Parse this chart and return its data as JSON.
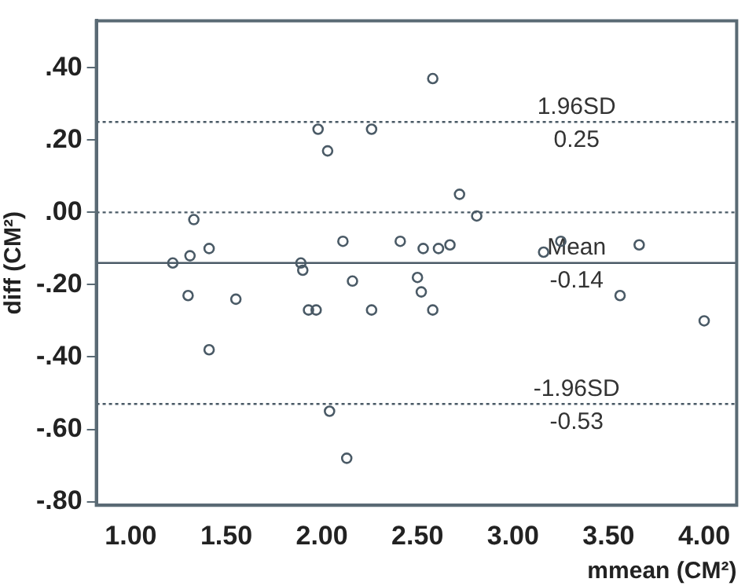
{
  "chart_data": {
    "type": "scatter",
    "xlabel": "mmean (CM²)",
    "ylabel": "diff (CM²)",
    "color": "#4a5a66",
    "marker": "circle",
    "grid": false,
    "legend": false,
    "x": [
      2.58,
      1.98,
      2.26,
      2.03,
      2.72,
      2.81,
      1.33,
      1.41,
      1.31,
      2.11,
      2.41,
      1.22,
      1.89,
      1.9,
      2.53,
      2.61,
      2.67,
      3.16,
      3.25,
      3.66,
      2.5,
      2.52,
      3.56,
      2.16,
      1.3,
      1.55,
      1.93,
      1.97,
      2.26,
      2.58,
      4.0,
      1.41,
      2.04,
      2.13
    ],
    "values": [
      0.37,
      0.23,
      0.23,
      0.17,
      0.05,
      -0.01,
      -0.02,
      -0.1,
      -0.12,
      -0.08,
      -0.08,
      -0.14,
      -0.14,
      -0.16,
      -0.1,
      -0.1,
      -0.09,
      -0.11,
      -0.08,
      -0.09,
      -0.18,
      -0.22,
      -0.23,
      -0.19,
      -0.23,
      -0.24,
      -0.27,
      -0.27,
      -0.27,
      -0.27,
      -0.3,
      -0.38,
      -0.55,
      -0.68
    ],
    "xlim": [
      0.82,
      4.17
    ],
    "xticks": [
      {
        "value": 1,
        "label": "1.00"
      },
      {
        "value": 1.5,
        "label": "1.50"
      },
      {
        "value": 2,
        "label": "2.00"
      },
      {
        "value": 2.5,
        "label": "2.50"
      },
      {
        "value": 3,
        "label": "3.00"
      },
      {
        "value": 3.5,
        "label": "3.50"
      },
      {
        "value": 4,
        "label": "4.00"
      }
    ],
    "ylim": [
      -0.81,
      0.53
    ],
    "yticks": [
      {
        "value": 0.4,
        "label": ".40"
      },
      {
        "value": 0.2,
        "label": ".20"
      },
      {
        "value": 0,
        "label": ".00"
      },
      {
        "value": -0.2,
        "label": "-.20"
      },
      {
        "value": -0.4,
        "label": "-.40"
      },
      {
        "value": -0.6,
        "label": "-.60"
      },
      {
        "value": -0.8,
        "label": "-.80"
      }
    ],
    "ref_lines": [
      {
        "axis": "y",
        "value": 0.25,
        "label": "1.96SD",
        "line_style": "dotted",
        "color": "#4a5a66"
      },
      {
        "axis": "y",
        "value": 0,
        "line_style": "dotted",
        "color": "#4a5a66"
      },
      {
        "axis": "y",
        "value": -0.14,
        "label": "Mean",
        "line_style": "solid",
        "color": "#4a5a66"
      },
      {
        "axis": "y",
        "value": -0.53,
        "label": "-1.96SD",
        "line_style": "dotted",
        "color": "#4a5a66"
      }
    ],
    "annotations": [
      "0.25",
      "-0.14",
      "-0.53"
    ]
  }
}
